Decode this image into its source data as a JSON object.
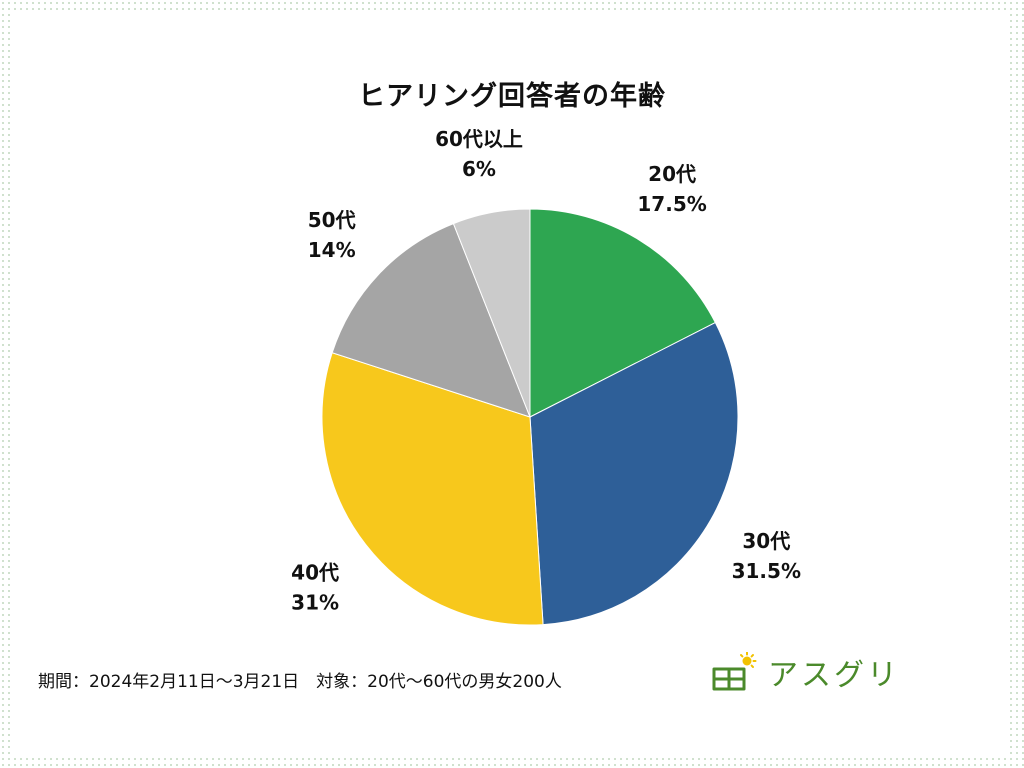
{
  "colors": {
    "background_dots": "#c9dcc6",
    "logo_green": "#4b8a2b",
    "logo_sun": "#f2c200"
  },
  "footer": {
    "note": "期間：2024年2月11日～3月21日　対象：20代～60代の男女200人",
    "logo_text": "アスグリ",
    "logo_icon": "house-sun-icon"
  },
  "chart_data": {
    "type": "pie",
    "title": "ヒアリング回答者の年齢",
    "start": "12 o'clock",
    "direction": "clockwise",
    "slices": [
      {
        "label": "20代",
        "value": 17.5,
        "value_label": "17.5%",
        "color": "#2ea651"
      },
      {
        "label": "30代",
        "value": 31.5,
        "value_label": "31.5%",
        "color": "#2e5f98"
      },
      {
        "label": "40代",
        "value": 31,
        "value_label": "31%",
        "color": "#f7c81c"
      },
      {
        "label": "50代",
        "value": 14,
        "value_label": "14%",
        "color": "#a5a5a5"
      },
      {
        "label": "60代以上",
        "value": 6,
        "value_label": "6%",
        "color": "#cbcbcb"
      }
    ]
  }
}
